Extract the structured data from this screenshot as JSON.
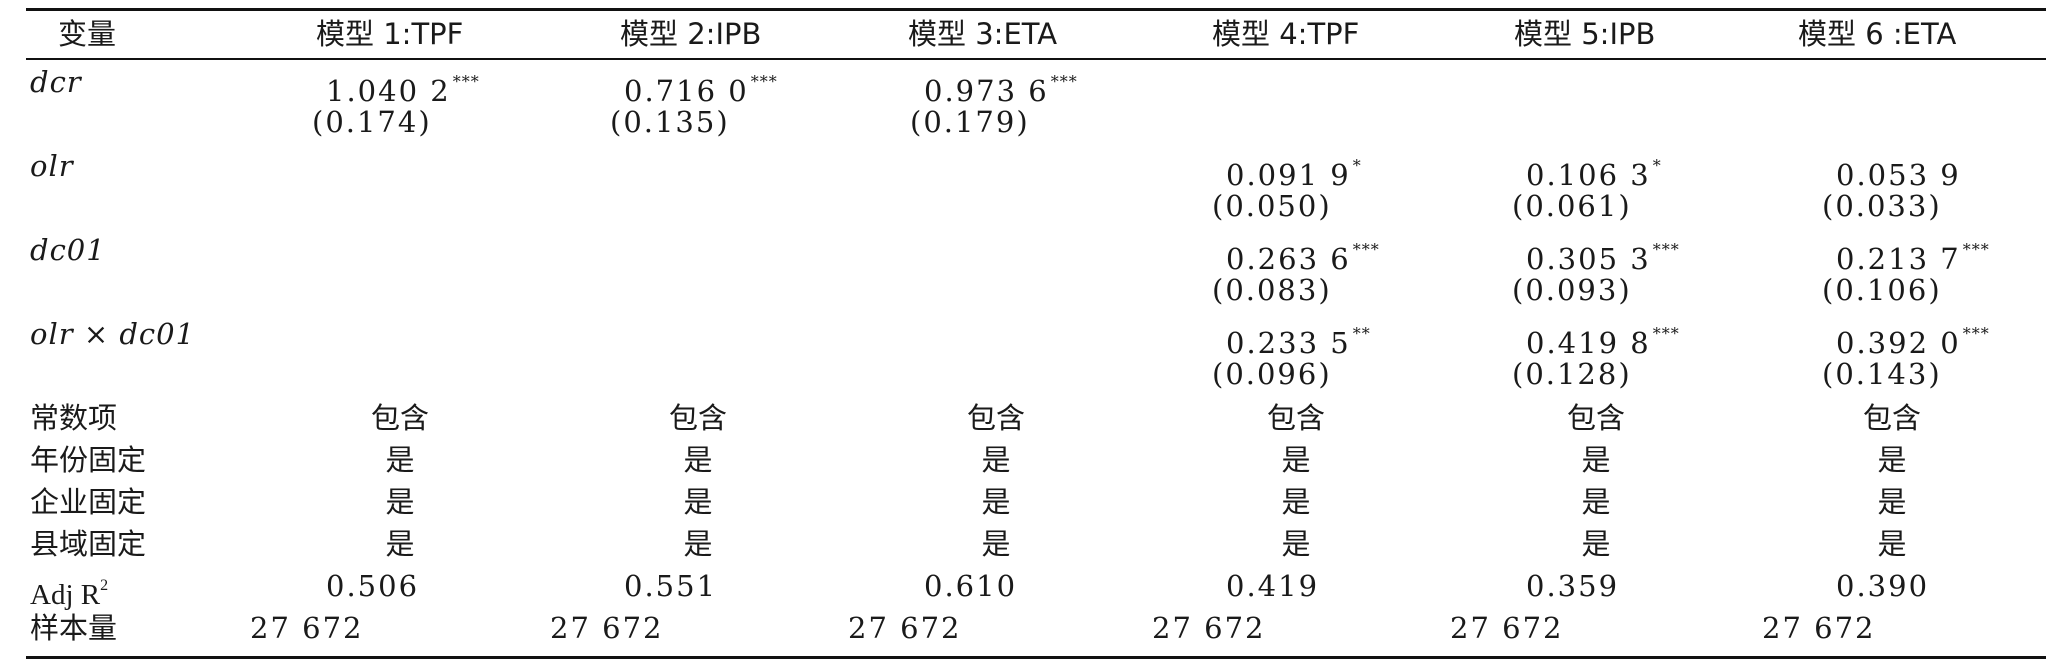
{
  "headers": [
    "变量",
    "模型 1:TPF",
    "模型 2:IPB",
    "模型 3:ETA",
    "模型 4:TPF",
    "模型 5:IPB",
    "模型 6 :ETA"
  ],
  "variables": {
    "dcr": {
      "label": "dcr",
      "m1": {
        "coef": "1.040 2",
        "stars": "***",
        "se": "(0.174)"
      },
      "m2": {
        "coef": "0.716 0",
        "stars": "***",
        "se": "(0.135)"
      },
      "m3": {
        "coef": "0.973 6",
        "stars": "***",
        "se": "(0.179)"
      }
    },
    "olr": {
      "label": "olr",
      "m4": {
        "coef": "0.091 9",
        "stars": "*",
        "se": "(0.050)"
      },
      "m5": {
        "coef": "0.106 3",
        "stars": "*",
        "se": "(0.061)"
      },
      "m6": {
        "coef": "0.053 9",
        "stars": "",
        "se": "(0.033)"
      }
    },
    "dc01": {
      "label": "dc01",
      "m4": {
        "coef": "0.263 6",
        "stars": "***",
        "se": "(0.083)"
      },
      "m5": {
        "coef": "0.305 3",
        "stars": "***",
        "se": "(0.093)"
      },
      "m6": {
        "coef": "0.213 7",
        "stars": "***",
        "se": "(0.106)"
      }
    },
    "inter": {
      "label": "olr × dc01",
      "m4": {
        "coef": "0.233 5",
        "stars": "**",
        "se": "(0.096)"
      },
      "m5": {
        "coef": "0.419 8",
        "stars": "***",
        "se": "(0.128)"
      },
      "m6": {
        "coef": "0.392 0",
        "stars": "***",
        "se": "(0.143)"
      }
    }
  },
  "controls": [
    {
      "label": "常数项",
      "values": [
        "包含",
        "包含",
        "包含",
        "包含",
        "包含",
        "包含"
      ]
    },
    {
      "label": "年份固定",
      "values": [
        "是",
        "是",
        "是",
        "是",
        "是",
        "是"
      ]
    },
    {
      "label": "企业固定",
      "values": [
        "是",
        "是",
        "是",
        "是",
        "是",
        "是"
      ]
    },
    {
      "label": "县域固定",
      "values": [
        "是",
        "是",
        "是",
        "是",
        "是",
        "是"
      ]
    }
  ],
  "adjr2": {
    "label": "Adj R",
    "sup": "2",
    "values": [
      "0.506",
      "0.551",
      "0.610",
      "0.419",
      "0.359",
      "0.390"
    ]
  },
  "n": {
    "label": "样本量",
    "values": [
      "27 672",
      "27 672",
      "27 672",
      "27 672",
      "27 672",
      "27 672"
    ]
  }
}
